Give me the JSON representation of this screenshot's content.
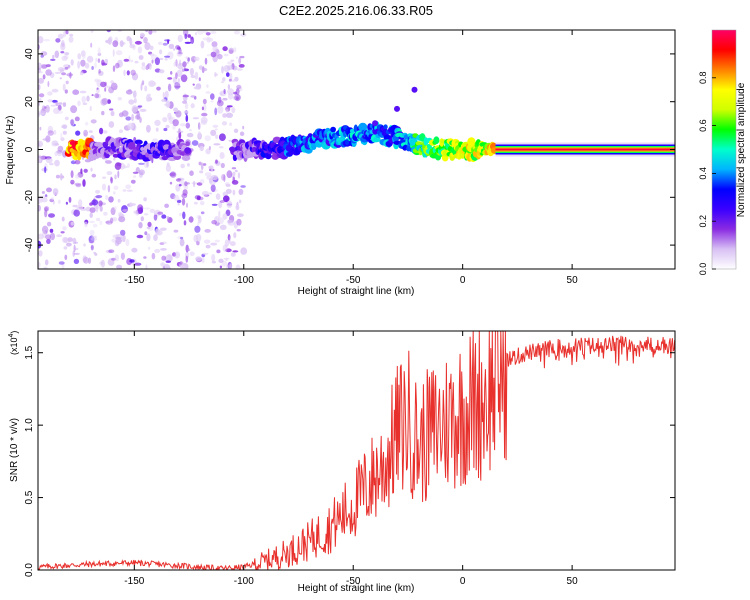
{
  "title": "C2E2.2025.216.06.33.R05",
  "chart_data": [
    {
      "type": "heatmap",
      "xlabel": "Height of straight line (km)",
      "ylabel": "Frequency (Hz)",
      "xlim": [
        -194,
        97
      ],
      "ylim": [
        -50,
        50
      ],
      "xticks": [
        -150,
        -100,
        -50,
        0,
        50
      ],
      "yticks": [
        -40,
        -20,
        0,
        20,
        40
      ],
      "colorbar": {
        "label": "Normalized spectral amplitude",
        "range": [
          0,
          1
        ],
        "ticks": [
          "0.0",
          "0.2",
          "0.4",
          "0.6",
          "0.8"
        ],
        "colormap": [
          "#ffffff",
          "#d8c0f4",
          "#8a2be2",
          "#3a00ff",
          "#0000ff",
          "#00b4ff",
          "#00ffcc",
          "#00ff00",
          "#d0ff00",
          "#ffff00",
          "#ff8000",
          "#ff0000",
          "#ff0066"
        ]
      },
      "ridge_points": [
        {
          "x": -170,
          "y": 0,
          "z": 0.2
        },
        {
          "x": -160,
          "y": 1,
          "z": 0.25
        },
        {
          "x": -150,
          "y": 0,
          "z": 0.3
        },
        {
          "x": -140,
          "y": -1,
          "z": 0.3
        },
        {
          "x": -100,
          "y": 0,
          "z": 0.25
        },
        {
          "x": -90,
          "y": 0,
          "z": 0.35
        },
        {
          "x": -80,
          "y": 1,
          "z": 0.45
        },
        {
          "x": -70,
          "y": 3,
          "z": 0.5
        },
        {
          "x": -60,
          "y": 5,
          "z": 0.45
        },
        {
          "x": -50,
          "y": 6,
          "z": 0.55
        },
        {
          "x": -40,
          "y": 7,
          "z": 0.5
        },
        {
          "x": -30,
          "y": 5,
          "z": 0.5
        },
        {
          "x": -20,
          "y": 2,
          "z": 0.65
        },
        {
          "x": -10,
          "y": 0,
          "z": 0.75
        },
        {
          "x": 0,
          "y": 0,
          "z": 0.8
        },
        {
          "x": 10,
          "y": 0,
          "z": 0.8
        },
        {
          "x": 20,
          "y": 0,
          "z": 0.95
        },
        {
          "x": 50,
          "y": 0,
          "z": 0.97
        },
        {
          "x": 95,
          "y": 0,
          "z": 0.98
        }
      ],
      "secondary_branch": [
        {
          "x": -40,
          "y": 11
        },
        {
          "x": -30,
          "y": 17
        },
        {
          "x": -22,
          "y": 25
        }
      ],
      "noise_band_x": [
        -194,
        -100
      ]
    },
    {
      "type": "line",
      "xlabel": "Height of straight line (km)",
      "ylabel": "SNR (10 * v/v)",
      "y_multiplier": "(x10",
      "y_multiplier_exponent": "4",
      "y_multiplier_close": ")",
      "xlim": [
        -194,
        97
      ],
      "ylim": [
        0,
        1.65
      ],
      "xticks": [
        -150,
        -100,
        -50,
        0,
        50
      ],
      "yticks": [
        "0.0",
        "0.5",
        "1.0",
        "1.5"
      ],
      "series": [
        {
          "color": "#e8302c",
          "x": [
            -194,
            -170,
            -150,
            -130,
            -110,
            -100,
            -90,
            -80,
            -70,
            -60,
            -50,
            -40,
            -35,
            -30,
            -25,
            -20,
            -15,
            -10,
            -5,
            0,
            5,
            10,
            15,
            20,
            30,
            40,
            50,
            60,
            70,
            80,
            90,
            97
          ],
          "y": [
            0.02,
            0.04,
            0.05,
            0.03,
            0.01,
            0.02,
            0.06,
            0.12,
            0.2,
            0.3,
            0.45,
            0.65,
            0.75,
            0.95,
            1.05,
            0.85,
            0.95,
            1.0,
            1.05,
            1.1,
            1.15,
            1.2,
            1.3,
            1.45,
            1.5,
            1.53,
            1.55,
            1.55,
            1.56,
            1.56,
            1.55,
            1.55
          ]
        }
      ]
    }
  ]
}
